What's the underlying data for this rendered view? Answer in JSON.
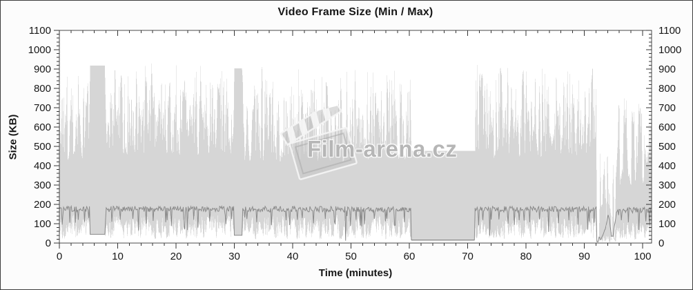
{
  "chart_data": {
    "type": "area",
    "title": "Video Frame Size (Min / Max)",
    "xlabel": "Time (minutes)",
    "ylabel": "Size (KB)",
    "watermark": "Film-arena.cz",
    "xlim": [
      0,
      101.54
    ],
    "ylim": [
      0,
      1100
    ],
    "x_major_ticks": [
      0,
      10,
      20,
      30,
      40,
      50,
      60,
      70,
      80,
      90,
      100
    ],
    "y_major_ticks": [
      0,
      100,
      200,
      300,
      400,
      500,
      600,
      700,
      800,
      900,
      1000,
      1100
    ],
    "x_minor_step": 2,
    "y_minor_step": 20,
    "grid": false,
    "legend": "none",
    "axes_mirrored": true,
    "seed": 42,
    "sample_step_min": 0.12,
    "series": [
      {
        "name": "min-max-range-fill",
        "style": "area",
        "color": "#d6d6d6"
      },
      {
        "name": "average-frame-size-line",
        "style": "line",
        "color": "#8a8a8a"
      }
    ],
    "segments": [
      {
        "t0": 0,
        "t1": 5.2,
        "top_lo": 430,
        "top_hi": 930,
        "top_pow": 1.6,
        "bot_lo": 18,
        "bot_hi": 150,
        "bot_pow": 1.3,
        "dark": 176,
        "dark_noise": 30,
        "dip_p": 0.05
      },
      {
        "t0": 5.2,
        "t1": 7.9,
        "flat": true,
        "top": 918,
        "bot": 45,
        "dark": 45
      },
      {
        "t0": 7.9,
        "t1": 30.0,
        "top_lo": 450,
        "top_hi": 935,
        "top_pow": 1.45,
        "bot_lo": 22,
        "bot_hi": 150,
        "bot_pow": 1.25,
        "dark": 176,
        "dark_noise": 30,
        "dip_p": 0.05
      },
      {
        "t0": 30.0,
        "t1": 31.35,
        "flat": true,
        "top": 903,
        "bot": 40,
        "dark": 40
      },
      {
        "t0": 31.35,
        "t1": 60.25,
        "top_lo": 420,
        "top_hi": 925,
        "top_pow": 1.55,
        "bot_lo": 18,
        "bot_hi": 148,
        "bot_pow": 1.3,
        "dark": 175,
        "dark_noise": 30,
        "dip_p": 0.05
      },
      {
        "t0": 60.25,
        "t1": 71.2,
        "flat": true,
        "top": 476,
        "bot": 10,
        "dark": 16
      },
      {
        "t0": 71.2,
        "t1": 92.15,
        "top_lo": 440,
        "top_hi": 945,
        "top_pow": 1.5,
        "bot_lo": 20,
        "bot_hi": 145,
        "bot_pow": 1.25,
        "dark": 175,
        "dark_noise": 30,
        "dip_p": 0.05
      },
      {
        "t0": 92.15,
        "t1": 92.45,
        "flat": true,
        "top": 12,
        "bot": 2,
        "dark": 8
      },
      {
        "t0": 92.45,
        "t1": 95.6,
        "top_lo": 130,
        "top_hi": 560,
        "top_pow": 1.3,
        "bot_lo": 3,
        "bot_hi": 45,
        "bot_pow": 1.3,
        "dark_noise": 14,
        "gap_p": 0.15,
        "dark_path": [
          [
            92.45,
            30
          ],
          [
            92.9,
            16
          ],
          [
            93.3,
            48
          ],
          [
            93.8,
            96
          ],
          [
            94.1,
            142
          ],
          [
            94.35,
            112
          ],
          [
            94.6,
            44
          ],
          [
            94.85,
            30
          ],
          [
            95.1,
            72
          ],
          [
            95.35,
            128
          ],
          [
            95.6,
            165
          ]
        ]
      },
      {
        "t0": 95.6,
        "t1": 101.54,
        "top_lo": 300,
        "top_hi": 800,
        "top_pow": 1.5,
        "bot_lo": 15,
        "bot_hi": 120,
        "bot_pow": 1.3,
        "dark": 170,
        "dark_noise": 30,
        "dip_p": 0.05,
        "gap_p": 0.03
      }
    ],
    "dark_dips": [
      [
        0.45,
        95
      ],
      [
        1.8,
        105
      ],
      [
        3.2,
        120
      ],
      [
        4.3,
        110
      ],
      [
        9.0,
        110
      ],
      [
        10.4,
        120
      ],
      [
        13.6,
        65
      ],
      [
        16.1,
        115
      ],
      [
        18.2,
        108
      ],
      [
        21.3,
        85
      ],
      [
        23.0,
        120
      ],
      [
        25.8,
        112
      ],
      [
        28.6,
        98
      ],
      [
        32.2,
        125
      ],
      [
        33.8,
        108
      ],
      [
        36.4,
        92
      ],
      [
        38.9,
        118
      ],
      [
        40.8,
        120
      ],
      [
        43.5,
        102
      ],
      [
        45.6,
        125
      ],
      [
        47.2,
        110
      ],
      [
        49.05,
        12
      ],
      [
        50.9,
        120
      ],
      [
        52.3,
        98
      ],
      [
        54.0,
        125
      ],
      [
        55.9,
        112
      ],
      [
        57.6,
        92
      ],
      [
        59.2,
        108
      ],
      [
        72.6,
        118
      ],
      [
        73.85,
        38
      ],
      [
        75.4,
        122
      ],
      [
        76.9,
        100
      ],
      [
        78.8,
        118
      ],
      [
        80.6,
        108
      ],
      [
        82.3,
        122
      ],
      [
        83.9,
        58
      ],
      [
        85.6,
        102
      ],
      [
        87.3,
        118
      ],
      [
        88.9,
        95
      ],
      [
        90.8,
        112
      ],
      [
        91.7,
        105
      ],
      [
        96.4,
        118
      ],
      [
        97.6,
        108
      ],
      [
        99.35,
        68
      ],
      [
        100.6,
        112
      ],
      [
        101.2,
        92
      ]
    ]
  },
  "colors": {
    "fill": "#d6d6d6",
    "line": "#8a8a8a",
    "axis": "#4a4a4a",
    "tick": "#333333",
    "text": "#161616",
    "watermark": "#b4b4b4",
    "background": "#fcfcfc",
    "plot_background": "#ffffff"
  }
}
